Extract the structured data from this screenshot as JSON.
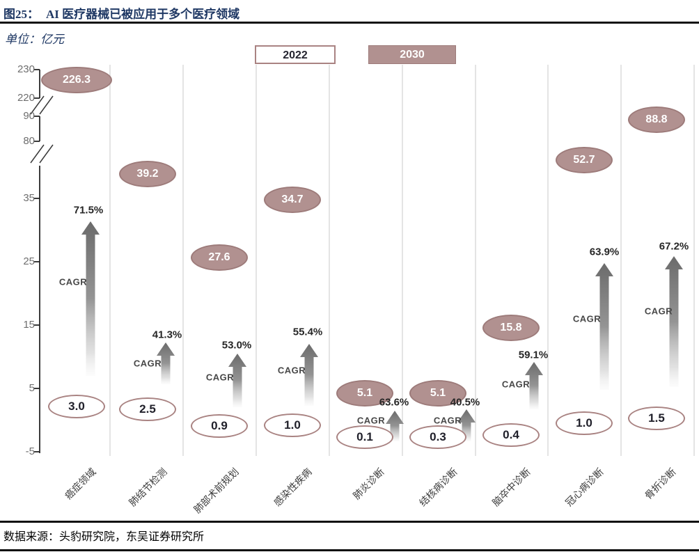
{
  "header": {
    "figure_label": "图25：",
    "title": "AI 医疗器械已被应用于多个医疗领域"
  },
  "unit_label": "单位：亿元",
  "legend": {
    "items": [
      {
        "label": "2022",
        "style": "outline"
      },
      {
        "label": "2030",
        "style": "filled"
      }
    ]
  },
  "chart_data": {
    "type": "scatter",
    "subtype": "dumbbell-comparison-with-broken-axis",
    "title": "AI 医疗器械已被应用于多个医疗领域",
    "unit": "亿元",
    "categories": [
      "癌症领域",
      "肺结节检测",
      "肺部术前规划",
      "感染性疾病",
      "肺炎诊断",
      "结核病诊断",
      "脑卒中诊断",
      "冠心病诊断",
      "骨折诊断"
    ],
    "series": [
      {
        "name": "2022",
        "values": [
          3.0,
          2.5,
          0.9,
          1.0,
          0.1,
          0.3,
          0.4,
          1.0,
          1.5
        ],
        "labels": [
          "3.0",
          "2.5",
          "0.9",
          "1.0",
          "0.1",
          "0.3",
          "0.4",
          "1.0",
          "1.5"
        ]
      },
      {
        "name": "2030",
        "values": [
          226.3,
          39.2,
          27.6,
          34.7,
          5.1,
          5.1,
          15.8,
          52.7,
          88.8
        ],
        "labels": [
          "226.3",
          "39.2",
          "27.6",
          "34.7",
          "5.1",
          "5.1",
          "15.8",
          "52.7",
          "88.8"
        ]
      }
    ],
    "cagr_label": "CAGR",
    "cagr_values": [
      "71.5%",
      "41.3%",
      "53.0%",
      "55.4%",
      "63.6%",
      "40.5%",
      "59.1%",
      "63.9%",
      "67.2%"
    ],
    "y_ticks": [
      "-5",
      "5",
      "15",
      "25",
      "35",
      "80",
      "90",
      "220",
      "230"
    ],
    "ylim": [
      -5,
      230
    ],
    "axis_breaks": [
      [
        35,
        80
      ],
      [
        90,
        220
      ]
    ],
    "legend_position": "top-center",
    "grid": "vertical-category-separators"
  },
  "footer": {
    "source": "数据来源：头豹研究院，东吴证券研究所"
  },
  "colors": {
    "title_navy": "#1f3864",
    "bubble_fill": "#b19190",
    "bubble_border": "#9d7b7a",
    "outline_bubble_border": "#a98382",
    "arrow_gray": "#6b6b6b",
    "gridline": "#d9d9d9",
    "axis": "#262626"
  }
}
